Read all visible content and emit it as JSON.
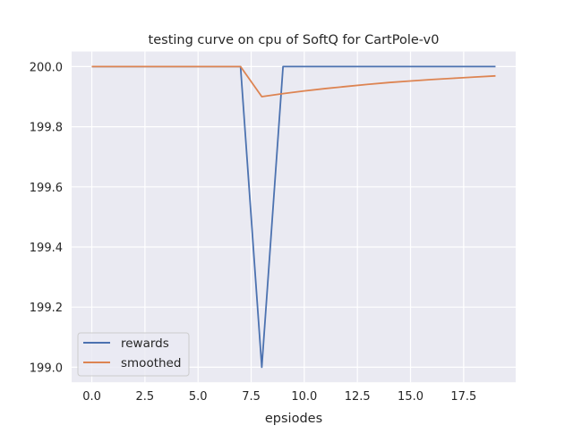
{
  "chart_data": {
    "type": "line",
    "title": "testing curve on cpu of SoftQ for CartPole-v0",
    "xlabel": "epsiodes",
    "ylabel": "",
    "xlim": [
      -0.95,
      19.95
    ],
    "ylim": [
      198.95,
      200.05
    ],
    "xticks": [
      0,
      2.5,
      5,
      7.5,
      10,
      12.5,
      15,
      17.5
    ],
    "xtick_labels": [
      "0.0",
      "2.5",
      "5.0",
      "7.5",
      "10.0",
      "12.5",
      "15.0",
      "17.5"
    ],
    "yticks": [
      199.0,
      199.2,
      199.4,
      199.6,
      199.8,
      200.0
    ],
    "ytick_labels": [
      "199.0",
      "199.2",
      "199.4",
      "199.6",
      "199.8",
      "200.0"
    ],
    "grid": true,
    "background": "#eaeaf2",
    "legend_placement": "lower-left",
    "x": [
      0,
      1,
      2,
      3,
      4,
      5,
      6,
      7,
      8,
      9,
      10,
      11,
      12,
      13,
      14,
      15,
      16,
      17,
      18,
      19
    ],
    "series": [
      {
        "name": "rewards",
        "color": "#4c72b0",
        "values": [
          200,
          200,
          200,
          200,
          200,
          200,
          200,
          200,
          199,
          200,
          200,
          200,
          200,
          200,
          200,
          200,
          200,
          200,
          200,
          200
        ]
      },
      {
        "name": "smoothed",
        "color": "#dd8452",
        "values": [
          200,
          200,
          200,
          200,
          200,
          200,
          200,
          200,
          199.9,
          199.91,
          199.919,
          199.927,
          199.934,
          199.941,
          199.947,
          199.952,
          199.957,
          199.961,
          199.965,
          199.969
        ]
      }
    ]
  }
}
